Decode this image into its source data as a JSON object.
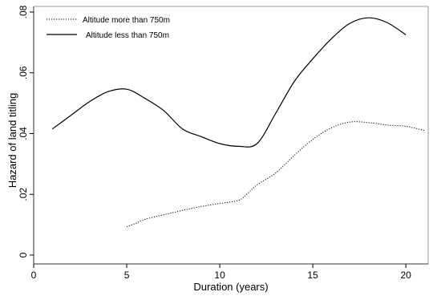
{
  "chart_data": {
    "type": "line",
    "title": "",
    "xlabel": "Duration (years)",
    "ylabel": "Hazard of land titling",
    "xlim": [
      0,
      21.2
    ],
    "ylim": [
      0,
      0.08
    ],
    "x_ticks": [
      {
        "value": 0,
        "label": "0"
      },
      {
        "value": 5,
        "label": "5"
      },
      {
        "value": 10,
        "label": "10"
      },
      {
        "value": 15,
        "label": "15"
      },
      {
        "value": 20,
        "label": "20"
      }
    ],
    "y_ticks": [
      {
        "value": 0,
        "label": "0"
      },
      {
        "value": 0.02,
        "label": ".02"
      },
      {
        "value": 0.04,
        "label": ".04"
      },
      {
        "value": 0.06,
        "label": ".06"
      },
      {
        "value": 0.08,
        "label": ".08"
      }
    ],
    "grid": false,
    "legend_position": "top-left",
    "series": [
      {
        "name": "Altitude more than 750m",
        "style": "dotted",
        "color": "#000000",
        "x": [
          5,
          5.5,
          6,
          7,
          8,
          9,
          10,
          11,
          11.5,
          12,
          13,
          14,
          15,
          16,
          17,
          18,
          19,
          20,
          21
        ],
        "y": [
          0.0093,
          0.0105,
          0.0118,
          0.0133,
          0.0147,
          0.016,
          0.017,
          0.018,
          0.0203,
          0.0231,
          0.027,
          0.0328,
          0.0381,
          0.0419,
          0.0438,
          0.0436,
          0.0428,
          0.0424,
          0.041
        ]
      },
      {
        "name": "Altitude less than 750m",
        "style": "solid",
        "color": "#000000",
        "x": [
          1,
          2,
          3,
          4,
          5,
          6,
          7,
          8,
          9,
          10,
          11,
          12,
          13,
          14,
          15,
          16,
          17,
          18,
          19,
          20
        ],
        "y": [
          0.0415,
          0.046,
          0.0505,
          0.0538,
          0.0546,
          0.0515,
          0.0475,
          0.0415,
          0.039,
          0.0367,
          0.0358,
          0.0367,
          0.0466,
          0.0571,
          0.0646,
          0.0712,
          0.0763,
          0.0781,
          0.0765,
          0.0725
        ]
      }
    ]
  }
}
